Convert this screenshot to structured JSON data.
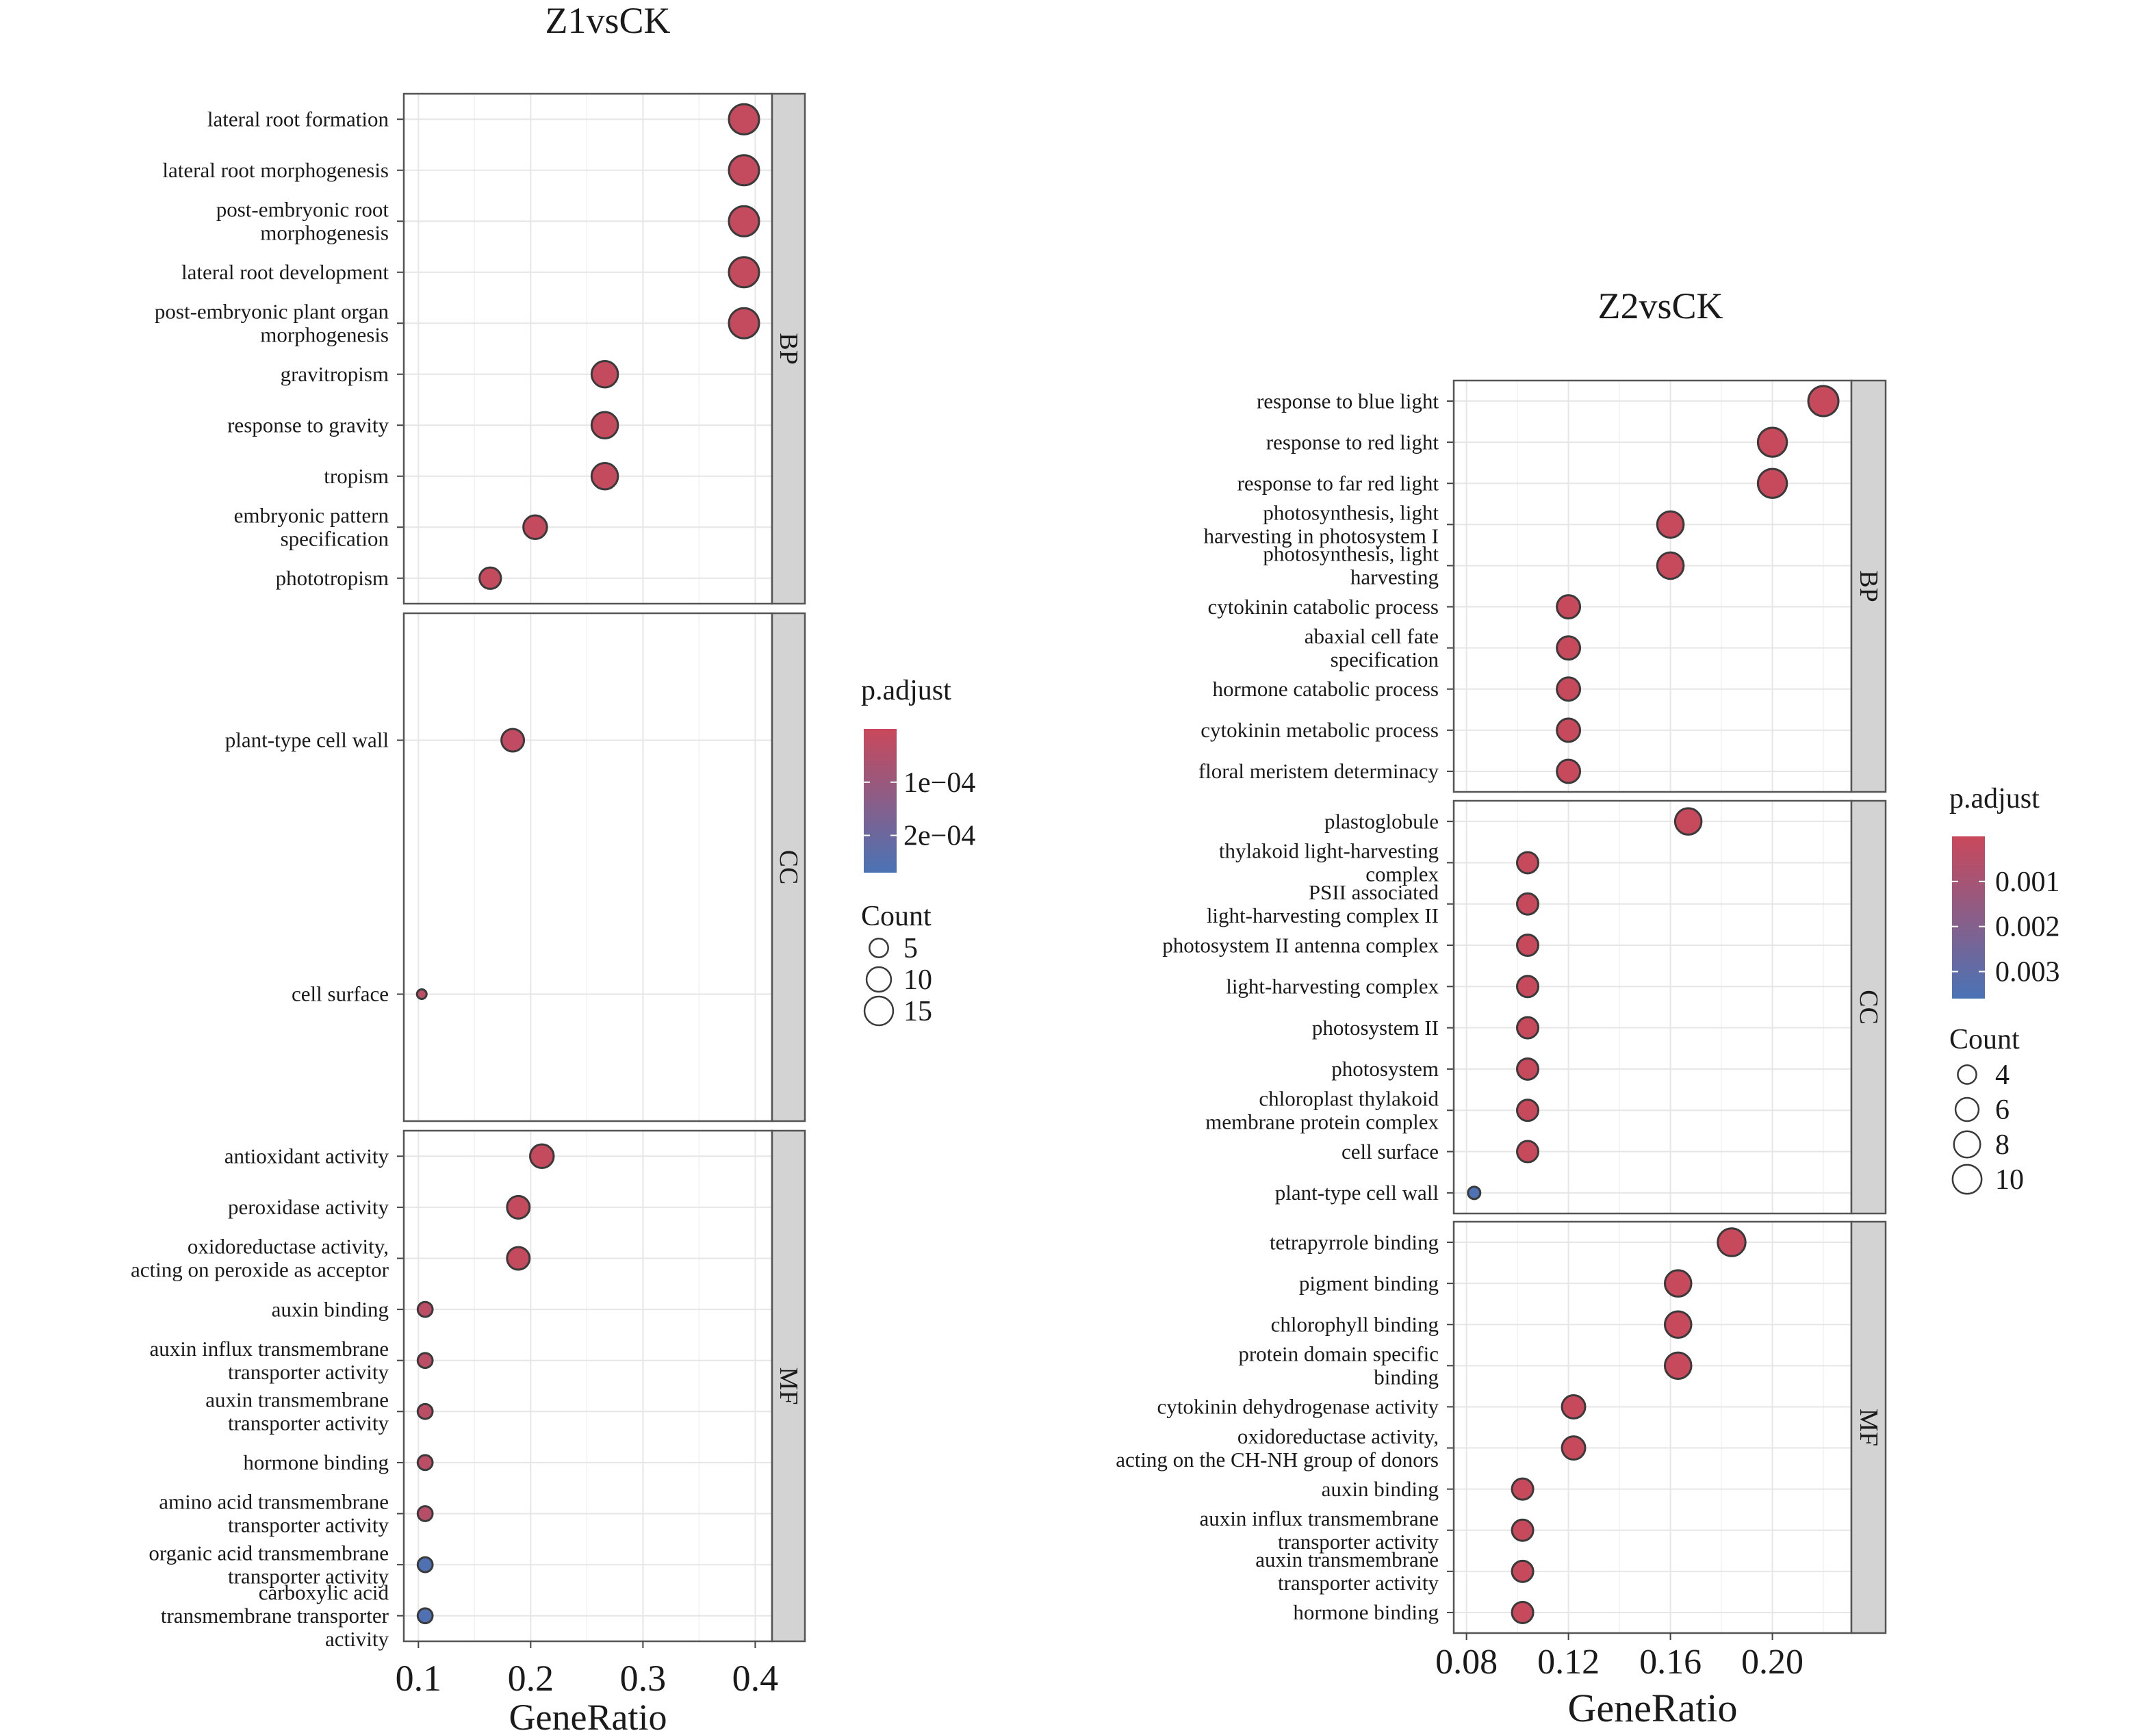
{
  "chart_data": [
    {
      "type": "scatter",
      "title": "Z1vsCK",
      "xlabel": "GeneRatio",
      "ylabel": "",
      "xlim": [
        0.087,
        0.415
      ],
      "x_ticks": [
        {
          "value": 0.1,
          "label": "0.1"
        },
        {
          "value": 0.2,
          "label": "0.2"
        },
        {
          "value": 0.3,
          "label": "0.3"
        },
        {
          "value": 0.4,
          "label": "0.4"
        }
      ],
      "grid": true,
      "color_scale": {
        "name": "p.adjust",
        "range": [
          0.0,
          0.00027
        ],
        "low_color": "#c9485b",
        "high_color": "#4a73b5",
        "ticks": [
          {
            "value": 0.0001,
            "label": "1e−04"
          },
          {
            "value": 0.0002,
            "label": "2e−04"
          }
        ]
      },
      "size_scale": {
        "name": "Count",
        "range": [
          2,
          17
        ],
        "entries": [
          {
            "value": 5,
            "label": "5"
          },
          {
            "value": 10,
            "label": "10"
          },
          {
            "value": 15,
            "label": "15"
          }
        ]
      },
      "legend_position": "right",
      "panels": [
        {
          "strip": "BP",
          "terms": [
            {
              "label": [
                "lateral root formation"
              ],
              "x": 0.39,
              "count": 17,
              "p_adjust": 1e-05
            },
            {
              "label": [
                "lateral root morphogenesis"
              ],
              "x": 0.39,
              "count": 17,
              "p_adjust": 1e-05
            },
            {
              "label": [
                "post-embryonic root",
                "morphogenesis"
              ],
              "x": 0.39,
              "count": 17,
              "p_adjust": 1e-05
            },
            {
              "label": [
                "lateral root development"
              ],
              "x": 0.39,
              "count": 17,
              "p_adjust": 1e-05
            },
            {
              "label": [
                "post-embryonic plant organ",
                "morphogenesis"
              ],
              "x": 0.39,
              "count": 17,
              "p_adjust": 1e-05
            },
            {
              "label": [
                "gravitropism"
              ],
              "x": 0.266,
              "count": 12,
              "p_adjust": 1e-05
            },
            {
              "label": [
                "response to gravity"
              ],
              "x": 0.266,
              "count": 12,
              "p_adjust": 1e-05
            },
            {
              "label": [
                "tropism"
              ],
              "x": 0.266,
              "count": 12,
              "p_adjust": 1e-05
            },
            {
              "label": [
                "embryonic pattern",
                "specification"
              ],
              "x": 0.204,
              "count": 9,
              "p_adjust": 1e-05
            },
            {
              "label": [
                "phototropism"
              ],
              "x": 0.164,
              "count": 7,
              "p_adjust": 1e-05
            }
          ]
        },
        {
          "strip": "CC",
          "terms": [
            {
              "label": [
                "plant-type cell wall"
              ],
              "x": 0.184,
              "count": 8,
              "p_adjust": 2e-05
            },
            {
              "label": [
                "cell surface"
              ],
              "x": 0.103,
              "count": 2,
              "p_adjust": 3e-05
            }
          ]
        },
        {
          "strip": "MF",
          "terms": [
            {
              "label": [
                "antioxidant activity"
              ],
              "x": 0.21,
              "count": 9,
              "p_adjust": 1e-05
            },
            {
              "label": [
                "peroxidase activity"
              ],
              "x": 0.189,
              "count": 8,
              "p_adjust": 1e-05
            },
            {
              "label": [
                "oxidoreductase activity,",
                "acting on peroxide as acceptor"
              ],
              "x": 0.189,
              "count": 8,
              "p_adjust": 1e-05
            },
            {
              "label": [
                "auxin binding"
              ],
              "x": 0.106,
              "count": 3,
              "p_adjust": 3e-05
            },
            {
              "label": [
                "auxin influx transmembrane",
                "transporter activity"
              ],
              "x": 0.106,
              "count": 3,
              "p_adjust": 3e-05
            },
            {
              "label": [
                "auxin transmembrane",
                "transporter activity"
              ],
              "x": 0.106,
              "count": 3,
              "p_adjust": 3e-05
            },
            {
              "label": [
                "hormone binding"
              ],
              "x": 0.106,
              "count": 3,
              "p_adjust": 3e-05
            },
            {
              "label": [
                "amino acid transmembrane",
                "transporter activity"
              ],
              "x": 0.106,
              "count": 3,
              "p_adjust": 4e-05
            },
            {
              "label": [
                "organic acid transmembrane",
                "transporter activity"
              ],
              "x": 0.106,
              "count": 3,
              "p_adjust": 0.00026
            },
            {
              "label": [
                "carboxylic acid",
                "transmembrane transporter",
                "activity"
              ],
              "x": 0.106,
              "count": 3,
              "p_adjust": 0.00026
            }
          ]
        }
      ]
    },
    {
      "type": "scatter",
      "title": "Z2vsCK",
      "xlabel": "GeneRatio",
      "ylabel": "",
      "xlim": [
        0.075,
        0.231
      ],
      "x_ticks": [
        {
          "value": 0.08,
          "label": "0.08"
        },
        {
          "value": 0.12,
          "label": "0.12"
        },
        {
          "value": 0.16,
          "label": "0.16"
        },
        {
          "value": 0.2,
          "label": "0.20"
        }
      ],
      "grid": true,
      "color_scale": {
        "name": "p.adjust",
        "range": [
          0.0,
          0.0036
        ],
        "low_color": "#c9485b",
        "high_color": "#4a73b5",
        "ticks": [
          {
            "value": 0.001,
            "label": "0.001"
          },
          {
            "value": 0.002,
            "label": "0.002"
          },
          {
            "value": 0.003,
            "label": "0.003"
          }
        ]
      },
      "size_scale": {
        "name": "Count",
        "range": [
          3,
          11
        ],
        "entries": [
          {
            "value": 4,
            "label": "4"
          },
          {
            "value": 6,
            "label": "6"
          },
          {
            "value": 8,
            "label": "8"
          },
          {
            "value": 10,
            "label": "10"
          }
        ]
      },
      "legend_position": "right",
      "panels": [
        {
          "strip": "BP",
          "terms": [
            {
              "label": [
                "response to blue light"
              ],
              "x": 0.22,
              "count": 11,
              "p_adjust": 5e-05
            },
            {
              "label": [
                "response to red light"
              ],
              "x": 0.2,
              "count": 10,
              "p_adjust": 5e-05
            },
            {
              "label": [
                "response to far red light"
              ],
              "x": 0.2,
              "count": 10,
              "p_adjust": 5e-05
            },
            {
              "label": [
                "photosynthesis, light",
                "harvesting in photosystem I"
              ],
              "x": 0.16,
              "count": 8,
              "p_adjust": 5e-05
            },
            {
              "label": [
                "photosynthesis, light",
                "harvesting"
              ],
              "x": 0.16,
              "count": 8,
              "p_adjust": 5e-05
            },
            {
              "label": [
                "cytokinin catabolic process"
              ],
              "x": 0.12,
              "count": 6,
              "p_adjust": 5e-05
            },
            {
              "label": [
                "abaxial cell fate",
                "specification"
              ],
              "x": 0.12,
              "count": 6,
              "p_adjust": 5e-05
            },
            {
              "label": [
                "hormone catabolic process"
              ],
              "x": 0.12,
              "count": 6,
              "p_adjust": 5e-05
            },
            {
              "label": [
                "cytokinin metabolic process"
              ],
              "x": 0.12,
              "count": 6,
              "p_adjust": 5e-05
            },
            {
              "label": [
                "floral meristem determinacy"
              ],
              "x": 0.12,
              "count": 6,
              "p_adjust": 5e-05
            }
          ]
        },
        {
          "strip": "CC",
          "terms": [
            {
              "label": [
                "plastoglobule"
              ],
              "x": 0.167,
              "count": 8,
              "p_adjust": 5e-05
            },
            {
              "label": [
                "thylakoid light-harvesting",
                "complex"
              ],
              "x": 0.104,
              "count": 5,
              "p_adjust": 5e-05
            },
            {
              "label": [
                "PSII associated",
                "light-harvesting complex II"
              ],
              "x": 0.104,
              "count": 5,
              "p_adjust": 5e-05
            },
            {
              "label": [
                "photosystem II antenna complex"
              ],
              "x": 0.104,
              "count": 5,
              "p_adjust": 5e-05
            },
            {
              "label": [
                "light-harvesting complex"
              ],
              "x": 0.104,
              "count": 5,
              "p_adjust": 5e-05
            },
            {
              "label": [
                "photosystem II"
              ],
              "x": 0.104,
              "count": 5,
              "p_adjust": 5e-05
            },
            {
              "label": [
                "photosystem"
              ],
              "x": 0.104,
              "count": 5,
              "p_adjust": 5e-05
            },
            {
              "label": [
                "chloroplast thylakoid",
                "membrane protein complex"
              ],
              "x": 0.104,
              "count": 5,
              "p_adjust": 5e-05
            },
            {
              "label": [
                "cell surface"
              ],
              "x": 0.104,
              "count": 5,
              "p_adjust": 5e-05
            },
            {
              "label": [
                "plant-type cell wall"
              ],
              "x": 0.083,
              "count": 3,
              "p_adjust": 0.0035
            }
          ]
        },
        {
          "strip": "MF",
          "terms": [
            {
              "label": [
                "tetrapyrrole binding"
              ],
              "x": 0.184,
              "count": 9,
              "p_adjust": 5e-05
            },
            {
              "label": [
                "pigment binding"
              ],
              "x": 0.163,
              "count": 8,
              "p_adjust": 5e-05
            },
            {
              "label": [
                "chlorophyll binding"
              ],
              "x": 0.163,
              "count": 8,
              "p_adjust": 5e-05
            },
            {
              "label": [
                "protein domain specific",
                "binding"
              ],
              "x": 0.163,
              "count": 8,
              "p_adjust": 5e-05
            },
            {
              "label": [
                "cytokinin dehydrogenase activity"
              ],
              "x": 0.122,
              "count": 6,
              "p_adjust": 5e-05
            },
            {
              "label": [
                "oxidoreductase activity,",
                "acting on the CH-NH group of donors"
              ],
              "x": 0.122,
              "count": 6,
              "p_adjust": 5e-05
            },
            {
              "label": [
                "auxin binding"
              ],
              "x": 0.102,
              "count": 5,
              "p_adjust": 5e-05
            },
            {
              "label": [
                "auxin influx transmembrane",
                "transporter activity"
              ],
              "x": 0.102,
              "count": 5,
              "p_adjust": 5e-05
            },
            {
              "label": [
                "auxin transmembrane",
                "transporter activity"
              ],
              "x": 0.102,
              "count": 5,
              "p_adjust": 5e-05
            },
            {
              "label": [
                "hormone binding"
              ],
              "x": 0.102,
              "count": 5,
              "p_adjust": 5e-05
            }
          ]
        }
      ]
    }
  ]
}
